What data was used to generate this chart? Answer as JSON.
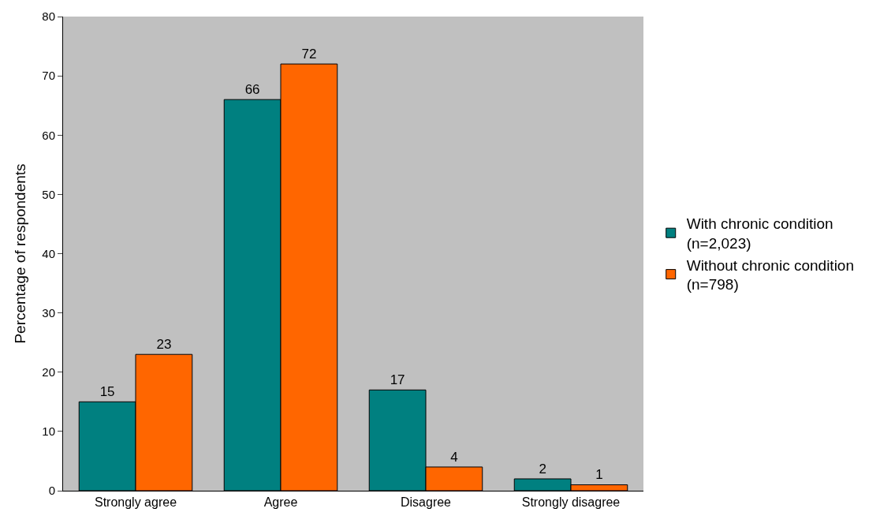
{
  "chart_data": {
    "type": "bar",
    "ylabel": "Percentage of respondents",
    "categories": [
      "Strongly agree",
      "Agree",
      "Disagree",
      "Strongly disagree"
    ],
    "series": [
      {
        "name": "With chronic condition\n(n=2,023)",
        "color": "#008080",
        "values": [
          15,
          66,
          17,
          2
        ]
      },
      {
        "name": "Without chronic condition\n(n=798)",
        "color": "#ff6600",
        "values": [
          23,
          72,
          4,
          1
        ]
      }
    ],
    "ylim": [
      0,
      80
    ],
    "yticks": [
      0,
      10,
      20,
      30,
      40,
      50,
      60,
      70,
      80
    ],
    "data_labels": true,
    "grid": false,
    "legend": "right"
  }
}
